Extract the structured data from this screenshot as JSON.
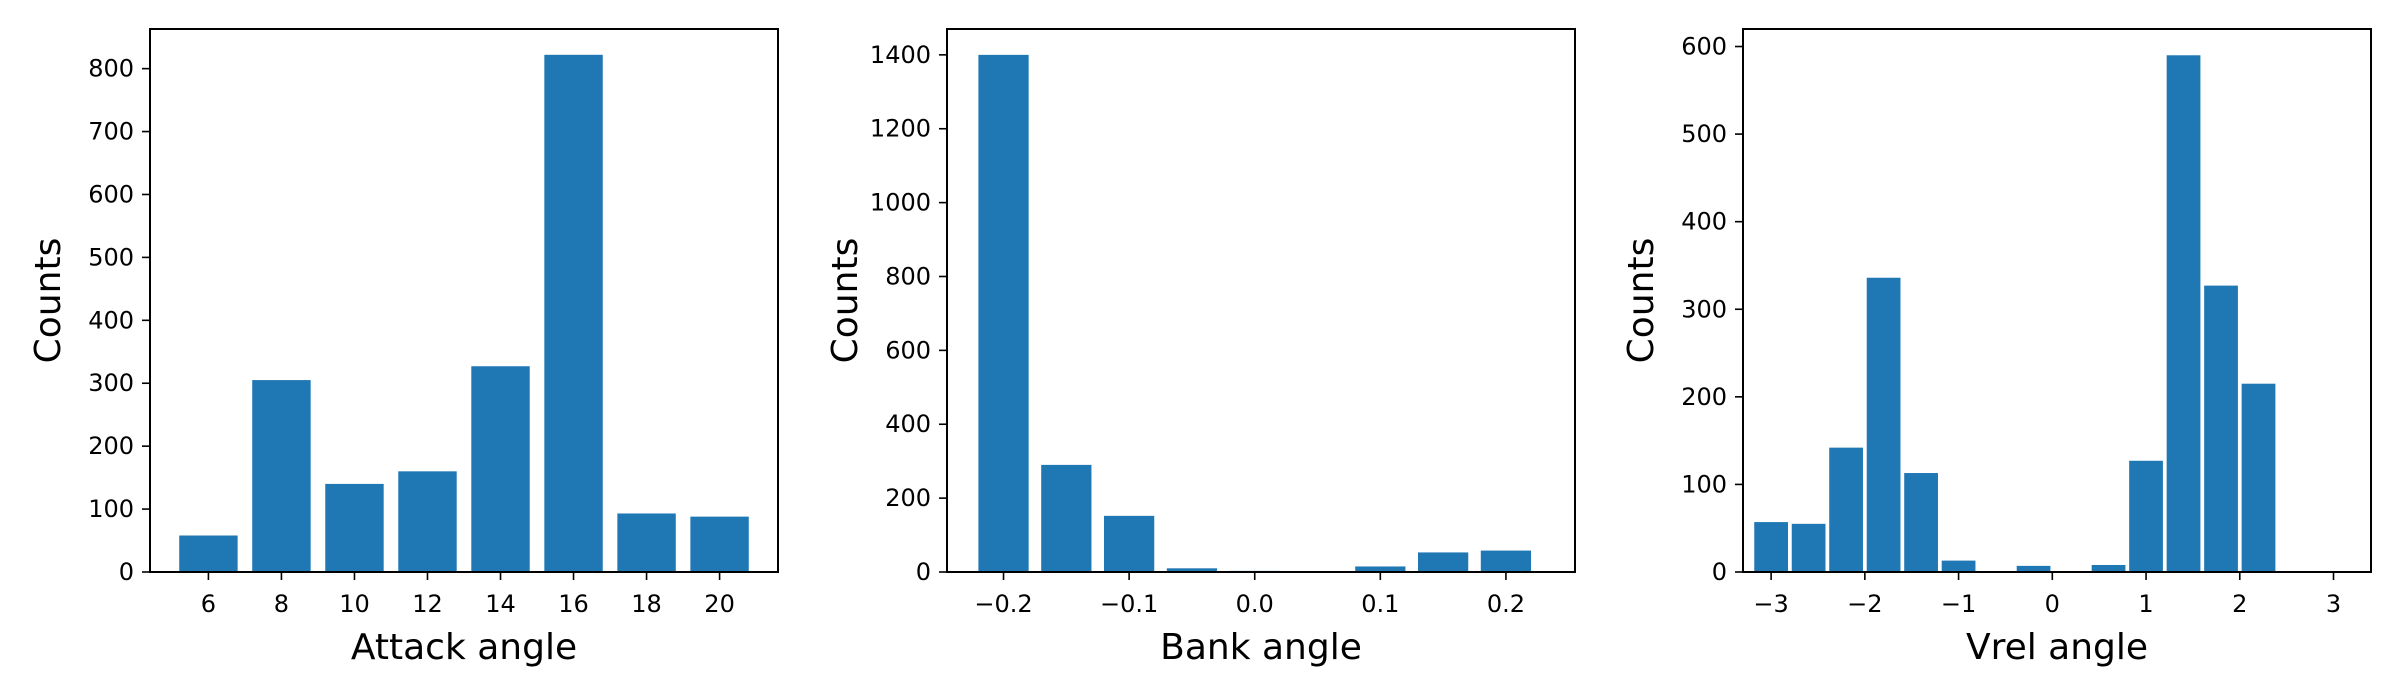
{
  "chart_data": [
    {
      "type": "bar",
      "xlabel": "Attack angle",
      "ylabel": "Counts",
      "bar_color": "#1f77b4",
      "x": [
        6,
        8,
        10,
        12,
        14,
        16,
        18,
        20
      ],
      "values": [
        58,
        305,
        140,
        160,
        327,
        822,
        93,
        88
      ],
      "bar_width": 1.6,
      "xlim": [
        4.4,
        21.6
      ],
      "ylim": [
        0,
        863
      ],
      "xticks": [
        6,
        8,
        10,
        12,
        14,
        16,
        18,
        20
      ],
      "xtick_labels": [
        "6",
        "8",
        "10",
        "12",
        "14",
        "16",
        "18",
        "20"
      ],
      "yticks": [
        0,
        100,
        200,
        300,
        400,
        500,
        600,
        700,
        800
      ],
      "ytick_labels": [
        "0",
        "100",
        "200",
        "300",
        "400",
        "500",
        "600",
        "700",
        "800"
      ],
      "grid": false
    },
    {
      "type": "bar",
      "xlabel": "Bank angle",
      "ylabel": "Counts",
      "bar_color": "#1f77b4",
      "x": [
        -0.2,
        -0.15,
        -0.1,
        -0.05,
        0.0,
        0.05,
        0.1,
        0.15,
        0.2
      ],
      "values": [
        1400,
        290,
        152,
        10,
        3,
        2,
        15,
        53,
        58
      ],
      "bar_width": 0.04,
      "xlim": [
        -0.245,
        0.255
      ],
      "ylim": [
        0,
        1470
      ],
      "xticks": [
        -0.2,
        -0.1,
        0.0,
        0.1,
        0.2
      ],
      "xtick_labels": [
        "−0.2",
        "−0.1",
        "0.0",
        "0.1",
        "0.2"
      ],
      "yticks": [
        0,
        200,
        400,
        600,
        800,
        1000,
        1200,
        1400
      ],
      "ytick_labels": [
        "0",
        "200",
        "400",
        "600",
        "800",
        "1000",
        "1200",
        "1400"
      ],
      "grid": false
    },
    {
      "type": "bar",
      "xlabel": "Vrel angle",
      "ylabel": "Counts",
      "bar_color": "#1f77b4",
      "x": [
        -3,
        -2.6,
        -2.2,
        -1.8,
        -1.4,
        -1.0,
        -0.6,
        -0.2,
        0.2,
        0.6,
        1.0,
        1.4,
        1.8,
        2.2
      ],
      "values": [
        57,
        55,
        142,
        336,
        113,
        13,
        1,
        7,
        1,
        8,
        127,
        590,
        327,
        215
      ],
      "bar_width": 0.36,
      "xlim": [
        -3.3,
        3.4
      ],
      "ylim": [
        0,
        620
      ],
      "xticks": [
        -3,
        -2,
        -1,
        0,
        1,
        2,
        3
      ],
      "xtick_labels": [
        "−3",
        "−2",
        "−1",
        "0",
        "1",
        "2",
        "3"
      ],
      "yticks": [
        0,
        100,
        200,
        300,
        400,
        500,
        600
      ],
      "ytick_labels": [
        "0",
        "100",
        "200",
        "300",
        "400",
        "500",
        "600"
      ],
      "grid": false
    }
  ]
}
